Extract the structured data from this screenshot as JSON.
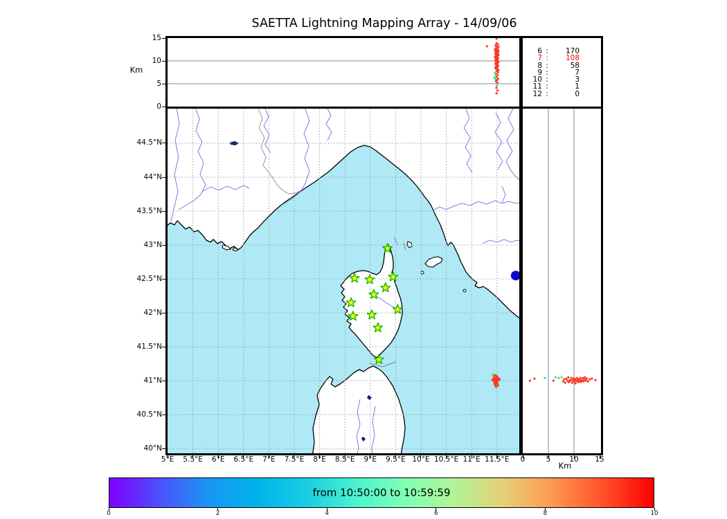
{
  "labels": {
    "title": "SAETTA Lightning Mapping Array - 14/09/06",
    "alt_axis_label_top": "Km",
    "alt_axis_label_right": "Km"
  },
  "colors": {
    "sea": "#afe9f5",
    "land": "#ffffff",
    "coast": "#000000",
    "river": "#7b7bea",
    "country_border": "#8a8a8a",
    "grid": "#999999",
    "panel_grid": "#888888",
    "lake": "#001a66",
    "late_red": "#f93822",
    "mid_green": "#3ce97e",
    "early_cyan": "#35cdeb",
    "early_blue": "#0a0acc",
    "star_fill": "#ffff00",
    "star_stroke": "#00b400",
    "highlight": "#ff0000"
  },
  "chart_data": [
    {
      "id": "alt_vs_lon",
      "type": "scatter",
      "position": "top-panel",
      "xlim": [
        5.0,
        11.94
      ],
      "ylim": [
        0,
        15
      ],
      "ylabel": "Km",
      "yticks": [
        15,
        10,
        5,
        0
      ],
      "grid_y": [
        5,
        10
      ],
      "legend_position": "none",
      "series": [
        {
          "name": "sources-late",
          "color_key": "late_red",
          "points": [
            [
              11.3,
              13.2
            ],
            [
              11.49,
              14.9
            ],
            [
              11.49,
              13.9
            ],
            [
              11.52,
              13.6
            ],
            [
              11.47,
              13.4
            ],
            [
              11.5,
              13.2
            ],
            [
              11.53,
              13.0
            ],
            [
              11.48,
              12.8
            ],
            [
              11.51,
              12.65
            ],
            [
              11.46,
              12.5
            ],
            [
              11.5,
              12.35
            ],
            [
              11.53,
              12.2
            ],
            [
              11.47,
              12.05
            ],
            [
              11.5,
              11.9
            ],
            [
              11.52,
              11.75
            ],
            [
              11.47,
              11.6
            ],
            [
              11.5,
              11.45
            ],
            [
              11.53,
              11.3
            ],
            [
              11.48,
              11.15
            ],
            [
              11.51,
              11.0
            ],
            [
              11.46,
              10.85
            ],
            [
              11.49,
              10.7
            ],
            [
              11.52,
              10.55
            ],
            [
              11.48,
              10.4
            ],
            [
              11.51,
              10.25
            ],
            [
              11.47,
              10.1
            ],
            [
              11.5,
              9.95
            ],
            [
              11.53,
              9.8
            ],
            [
              11.48,
              9.65
            ],
            [
              11.51,
              9.5
            ],
            [
              11.47,
              9.35
            ],
            [
              11.5,
              9.2
            ],
            [
              11.52,
              9.0
            ],
            [
              11.48,
              8.8
            ],
            [
              11.51,
              8.6
            ],
            [
              11.47,
              8.4
            ],
            [
              11.5,
              8.2
            ],
            [
              11.53,
              8.0
            ],
            [
              11.49,
              7.8
            ],
            [
              11.52,
              7.5
            ],
            [
              11.48,
              7.2
            ],
            [
              11.51,
              6.9
            ],
            [
              11.49,
              6.5
            ],
            [
              11.52,
              6.1
            ],
            [
              11.5,
              5.8
            ],
            [
              11.48,
              5.5
            ],
            [
              11.51,
              5.2
            ],
            [
              11.49,
              4.1
            ],
            [
              11.51,
              3.5
            ],
            [
              11.49,
              2.9
            ]
          ]
        },
        {
          "name": "sources-mid",
          "color_key": "mid_green",
          "points": [
            [
              11.46,
              7.35
            ],
            [
              11.48,
              6.85
            ],
            [
              11.45,
              6.35
            ],
            [
              11.47,
              5.95
            ]
          ]
        },
        {
          "name": "sources-early",
          "color_key": "early_cyan",
          "points": [
            [
              11.5,
              4.6
            ]
          ]
        }
      ]
    },
    {
      "id": "source_counts",
      "type": "table",
      "position": "top-right-panel",
      "rows": [
        [
          "6",
          "170"
        ],
        [
          "7",
          "108"
        ],
        [
          "8",
          "58"
        ],
        [
          "9",
          "7"
        ],
        [
          "10",
          "3"
        ],
        [
          "11",
          "1"
        ],
        [
          "12",
          "0"
        ]
      ],
      "highlight_row_index": 1
    },
    {
      "id": "plan_view_map",
      "type": "scatter",
      "position": "map-panel",
      "xlim": [
        5.0,
        11.94
      ],
      "ylim": [
        39.93,
        45.01
      ],
      "lon_ticks": [
        {
          "v": 5,
          "label": "5°E"
        },
        {
          "v": 5.5,
          "label": "5.5°E"
        },
        {
          "v": 6,
          "label": "6°E"
        },
        {
          "v": 6.5,
          "label": "6.5°E"
        },
        {
          "v": 7,
          "label": "7°E"
        },
        {
          "v": 7.5,
          "label": "7.5°E"
        },
        {
          "v": 8,
          "label": "8°E"
        },
        {
          "v": 8.5,
          "label": "8.5°E"
        },
        {
          "v": 9,
          "label": "9°E"
        },
        {
          "v": 9.5,
          "label": "9.5°E"
        },
        {
          "v": 10,
          "label": "10°E"
        },
        {
          "v": 10.5,
          "label": "10.5°E"
        },
        {
          "v": 11,
          "label": "11°E"
        },
        {
          "v": 11.5,
          "label": "11.5°E"
        }
      ],
      "lat_ticks": [
        {
          "v": 44.5,
          "label": "44.5°N"
        },
        {
          "v": 44,
          "label": "44°N"
        },
        {
          "v": 43.5,
          "label": "43.5°N"
        },
        {
          "v": 43,
          "label": "43°N"
        },
        {
          "v": 42.5,
          "label": "42.5°N"
        },
        {
          "v": 42,
          "label": "42°N"
        },
        {
          "v": 41.5,
          "label": "41.5°N"
        },
        {
          "v": 41,
          "label": "41°N"
        },
        {
          "v": 40.5,
          "label": "40.5°N"
        },
        {
          "v": 40,
          "label": "40°N"
        }
      ],
      "stations": [
        [
          9.34,
          42.95
        ],
        [
          8.69,
          42.51
        ],
        [
          8.99,
          42.49
        ],
        [
          9.45,
          42.53
        ],
        [
          9.3,
          42.37
        ],
        [
          9.07,
          42.27
        ],
        [
          8.62,
          42.15
        ],
        [
          9.54,
          42.05
        ],
        [
          9.03,
          41.97
        ],
        [
          8.66,
          41.95
        ],
        [
          9.15,
          41.78
        ],
        [
          9.17,
          41.31
        ]
      ],
      "series": [
        {
          "name": "cluster-late",
          "color_key": "late_red",
          "points": [
            [
              11.44,
              41.07
            ],
            [
              11.47,
              41.08
            ],
            [
              11.5,
              41.06
            ],
            [
              11.43,
              41.03
            ],
            [
              11.46,
              41.04
            ],
            [
              11.49,
              41.03
            ],
            [
              11.52,
              41.04
            ],
            [
              11.44,
              41.0
            ],
            [
              11.47,
              41.01
            ],
            [
              11.5,
              41.0
            ],
            [
              11.53,
              41.01
            ],
            [
              11.45,
              40.97
            ],
            [
              11.48,
              40.98
            ],
            [
              11.51,
              40.97
            ],
            [
              11.46,
              40.94
            ],
            [
              11.49,
              40.95
            ],
            [
              11.52,
              40.93
            ],
            [
              11.48,
              40.91
            ],
            [
              11.55,
              41.02
            ],
            [
              11.41,
              41.01
            ]
          ]
        },
        {
          "name": "cluster-mid",
          "color_key": "mid_green",
          "points": [
            [
              11.42,
              41.09
            ]
          ]
        },
        {
          "name": "event-early",
          "color_key": "early_blue",
          "radius": 7,
          "points": [
            [
              11.87,
              42.55
            ]
          ]
        }
      ]
    },
    {
      "id": "lat_vs_alt",
      "type": "scatter",
      "position": "right-panel",
      "xlim": [
        0,
        15.3
      ],
      "ylim": [
        39.93,
        45.01
      ],
      "xlabel": "Km",
      "xticks": [
        0,
        5,
        10,
        15
      ],
      "grid_x": [
        5,
        10
      ],
      "series": [
        {
          "name": "sources-late",
          "color_key": "late_red",
          "points": [
            [
              1.4,
              41.0
            ],
            [
              2.3,
              41.03
            ],
            [
              6.0,
              41.0
            ],
            [
              7.9,
              40.99
            ],
            [
              8.1,
              41.02
            ],
            [
              8.3,
              40.97
            ],
            [
              8.5,
              41.03
            ],
            [
              8.7,
              41.0
            ],
            [
              8.9,
              41.05
            ],
            [
              9.0,
              40.98
            ],
            [
              9.2,
              41.01
            ],
            [
              9.35,
              41.0
            ],
            [
              9.5,
              41.04
            ],
            [
              9.65,
              40.97
            ],
            [
              9.8,
              41.01
            ],
            [
              9.95,
              41.03
            ],
            [
              10.05,
              40.99
            ],
            [
              10.2,
              41.02
            ],
            [
              10.3,
              40.96
            ],
            [
              10.45,
              41.0
            ],
            [
              10.55,
              41.04
            ],
            [
              10.7,
              41.01
            ],
            [
              10.8,
              40.98
            ],
            [
              10.95,
              41.02
            ],
            [
              11.05,
              41.0
            ],
            [
              11.2,
              41.04
            ],
            [
              11.3,
              40.98
            ],
            [
              11.45,
              41.01
            ],
            [
              11.55,
              41.0
            ],
            [
              11.7,
              41.04
            ],
            [
              11.85,
              40.99
            ],
            [
              12.0,
              41.02
            ],
            [
              12.15,
              41.05
            ],
            [
              12.3,
              41.0
            ],
            [
              12.5,
              41.03
            ],
            [
              12.75,
              40.99
            ],
            [
              13.05,
              41.02
            ],
            [
              13.5,
              41.03
            ],
            [
              14.2,
              41.01
            ]
          ]
        },
        {
          "name": "sources-mid",
          "color_key": "mid_green",
          "points": [
            [
              6.4,
              41.05
            ],
            [
              7.0,
              41.04
            ],
            [
              7.6,
              41.05
            ]
          ]
        },
        {
          "name": "sources-early",
          "color_key": "early_cyan",
          "points": [
            [
              4.3,
              41.04
            ]
          ]
        }
      ]
    },
    {
      "id": "time_colorbar",
      "type": "colorbar",
      "label": "from 10:50:00 to 10:59:59",
      "range": [
        0,
        10
      ],
      "ticks": [
        0,
        2,
        4,
        6,
        8,
        10
      ],
      "gradient": [
        "#8000ff",
        "#4d4ffc",
        "#1a96f3",
        "#00b4ec",
        "#1acee3",
        "#4df3ce",
        "#80ffb4",
        "#b3f396",
        "#e6ce74",
        "#ff964f",
        "#ff4f28",
        "#ff0000"
      ]
    }
  ]
}
